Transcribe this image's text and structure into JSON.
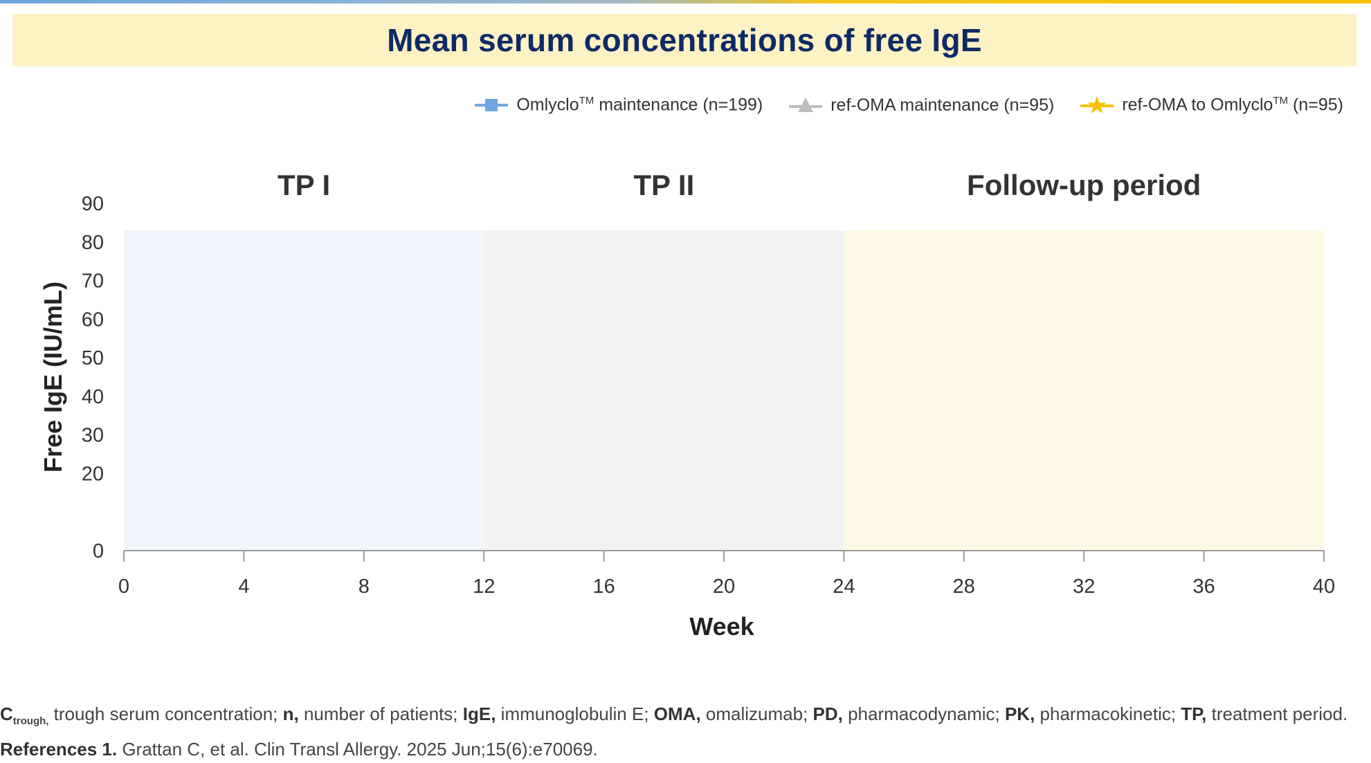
{
  "chart_data": {
    "type": "line",
    "title": "Mean serum concentrations of free IgE",
    "xlabel": "Week",
    "ylabel": "Free IgE (IU/mL)",
    "xlim": [
      0,
      40
    ],
    "ylim": [
      0,
      90
    ],
    "x_ticks": [
      0,
      4,
      8,
      12,
      16,
      20,
      24,
      28,
      32,
      36,
      40
    ],
    "y_ticks": [
      0,
      20,
      30,
      40,
      50,
      60,
      70,
      80,
      90
    ],
    "grid": false,
    "legend_position": "top-right",
    "periods": [
      {
        "label": "TP I",
        "start": 0,
        "end": 12,
        "color": "#f0f5fc"
      },
      {
        "label": "TP II",
        "start": 12,
        "end": 24,
        "color": "#f2f2f2"
      },
      {
        "label": "Follow-up period",
        "start": 24,
        "end": 40,
        "color": "#fef9e6"
      }
    ],
    "period_band_top": 83,
    "series": [
      {
        "name": "Omlyclo",
        "name_sup": "TM",
        "name_rest": " maintenance (n=199)",
        "marker": "square",
        "color": "#6fa6dd",
        "x": [],
        "y": []
      },
      {
        "name": "ref-OMA maintenance (n=95)",
        "marker": "triangle",
        "color": "#bdbdbd",
        "x": [],
        "y": []
      },
      {
        "name": "ref-OMA to Omlyclo",
        "name_sup": "TM",
        "name_rest": " (n=95)",
        "marker": "star",
        "color": "#f6c200",
        "x": [],
        "y": []
      }
    ]
  },
  "footer": {
    "line1": [
      {
        "b": "C",
        "sub": "trough,",
        "t": " trough serum concentration; "
      },
      {
        "b": "n,",
        "t": " number of patients; "
      },
      {
        "b": "IgE,",
        "t": " immunoglobulin E; "
      },
      {
        "b": "OMA,",
        "t": " omalizumab; "
      },
      {
        "b": "PD,",
        "t": " pharmacodynamic; "
      },
      {
        "b": "PK,",
        "t": " pharmacokinetic; "
      },
      {
        "b": "TP,",
        "t": " treatment period."
      }
    ],
    "line2_bold": "References 1.",
    "line2_text": " Grattan C, et al. Clin Transl Allergy. 2025 Jun;15(6):e70069."
  }
}
